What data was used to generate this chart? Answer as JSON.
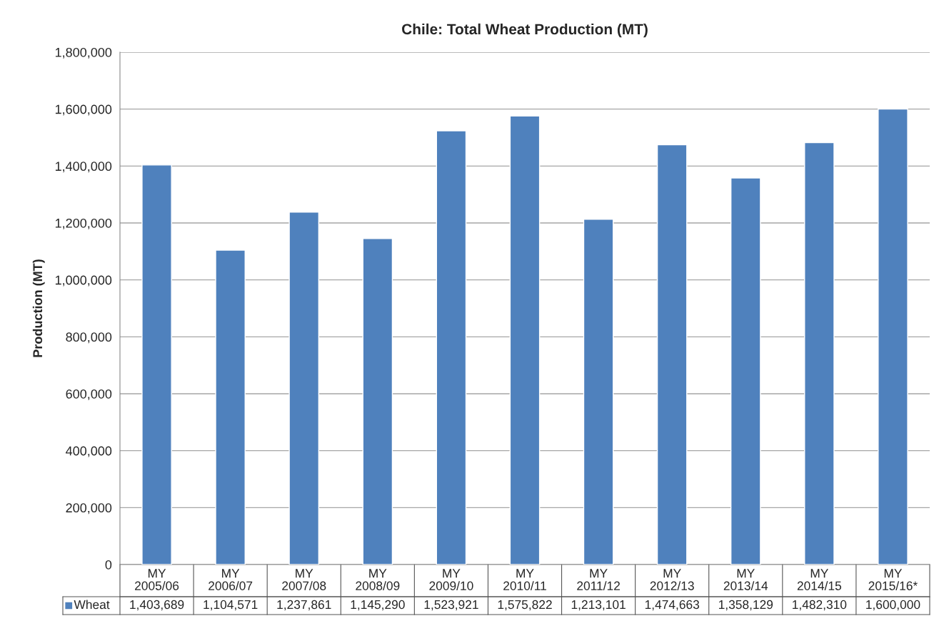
{
  "chart_data": {
    "type": "bar",
    "title": "Chile: Total Wheat Production (MT)",
    "ylabel": "Production (MT)",
    "categories": [
      "MY 2005/06",
      "MY 2006/07",
      "MY 2007/08",
      "MY 2008/09",
      "MY 2009/10",
      "MY 2010/11",
      "MY 2011/12",
      "MY 2012/13",
      "MY 2013/14",
      "MY 2014/15",
      "MY 2015/16*"
    ],
    "series": [
      {
        "name": "Wheat",
        "color": "#4f81bd",
        "values": [
          1403689,
          1104571,
          1237861,
          1145290,
          1523921,
          1575822,
          1213101,
          1474663,
          1358129,
          1482310,
          1600000
        ],
        "value_labels": [
          "1,403,689",
          "1,104,571",
          "1,237,861",
          "1,145,290",
          "1,523,921",
          "1,575,822",
          "1,213,101",
          "1,474,663",
          "1,358,129",
          "1,482,310",
          "1,600,000"
        ]
      }
    ],
    "ylim": [
      0,
      1800000
    ],
    "yticks": [
      {
        "value": 0,
        "label": "0"
      },
      {
        "value": 200000,
        "label": "200,000"
      },
      {
        "value": 400000,
        "label": "400,000"
      },
      {
        "value": 600000,
        "label": "600,000"
      },
      {
        "value": 800000,
        "label": "800,000"
      },
      {
        "value": 1000000,
        "label": "1,000,000"
      },
      {
        "value": 1200000,
        "label": "1,200,000"
      },
      {
        "value": 1400000,
        "label": "1,400,000"
      },
      {
        "value": 1600000,
        "label": "1,600,000"
      },
      {
        "value": 1800000,
        "label": "1,800,000"
      }
    ],
    "grid": "y"
  }
}
